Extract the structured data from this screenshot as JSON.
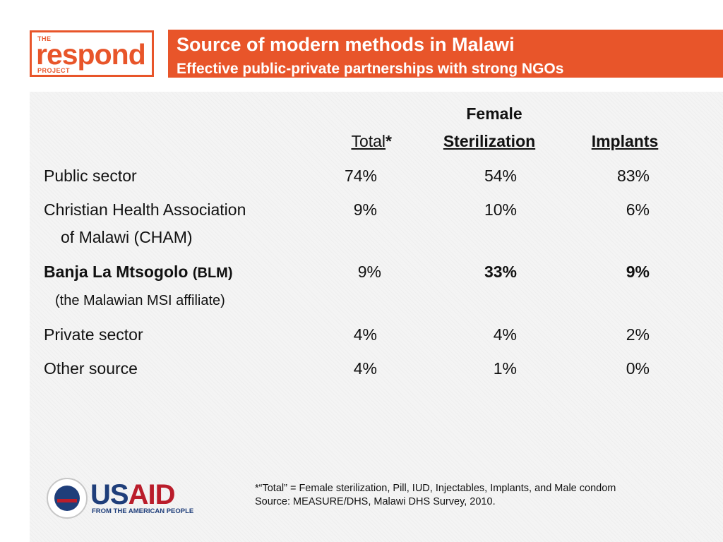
{
  "logo": {
    "the": "THE",
    "word": "respond",
    "project": "PROJECT"
  },
  "banner": {
    "title": "Source of modern methods in Malawi",
    "subtitle": "Effective public-private partnerships with strong NGOs"
  },
  "table": {
    "headers": {
      "female": "Female",
      "total": "Total",
      "total_mark": "*",
      "sterilization": "Sterilization",
      "implants": "Implants"
    },
    "rows": [
      {
        "label": "Public sector",
        "sublabel": "",
        "total": "74%",
        "sterilization": "54%",
        "implants": "83%"
      },
      {
        "label": "Christian Health Association",
        "sublabel": "of Malawi (CHAM)",
        "total": "9%",
        "sterilization": "10%",
        "implants": "6%"
      },
      {
        "label": "Banja La Mtsogolo",
        "label_suffix": "(BLM)",
        "sublabel": "(the Malawian MSI affiliate)",
        "total": "9%",
        "sterilization": "33%",
        "implants": "9%"
      },
      {
        "label": "Private sector",
        "sublabel": "",
        "total": "4%",
        "sterilization": "4%",
        "implants": "2%"
      },
      {
        "label": "Other source",
        "sublabel": "",
        "total": "4%",
        "sterilization": "1%",
        "implants": "0%"
      }
    ]
  },
  "footnote": {
    "line1": "*“Total” = Female sterilization, Pill, IUD, Injectables, Implants, and Male condom",
    "line2": "Source: MEASURE/DHS, Malawi DHS Survey, 2010."
  },
  "usaid": {
    "us": "US",
    "aid": "AID",
    "tagline": "FROM THE AMERICAN PEOPLE"
  },
  "colors": {
    "accent": "#e8552a",
    "usaid_blue": "#1f3e7a",
    "usaid_red": "#ba1d2b"
  }
}
